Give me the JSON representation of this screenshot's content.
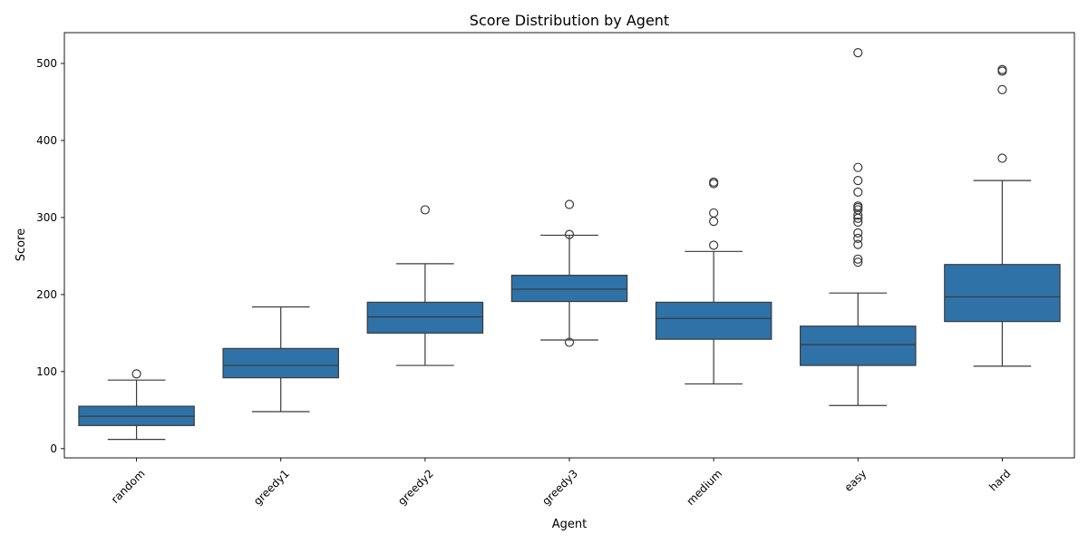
{
  "chart_data": {
    "type": "boxplot",
    "title": "Score Distribution by Agent",
    "xlabel": "Agent",
    "ylabel": "Score",
    "ylim": [
      -12,
      540
    ],
    "yticks": [
      0,
      100,
      200,
      300,
      400,
      500
    ],
    "categories": [
      "random",
      "greedy1",
      "greedy2",
      "greedy3",
      "medium",
      "easy",
      "hard"
    ],
    "box_color": "#2e72a8",
    "grid": false,
    "boxes": [
      {
        "category": "random",
        "whisker_low": 12,
        "q1": 30,
        "median": 42,
        "q3": 55,
        "whisker_high": 89,
        "outliers": [
          97
        ]
      },
      {
        "category": "greedy1",
        "whisker_low": 48,
        "q1": 92,
        "median": 108,
        "q3": 130,
        "whisker_high": 184,
        "outliers": []
      },
      {
        "category": "greedy2",
        "whisker_low": 108,
        "q1": 150,
        "median": 171,
        "q3": 190,
        "whisker_high": 240,
        "outliers": [
          310
        ]
      },
      {
        "category": "greedy3",
        "whisker_low": 141,
        "q1": 191,
        "median": 207,
        "q3": 225,
        "whisker_high": 277,
        "outliers": [
          138,
          278,
          317
        ]
      },
      {
        "category": "medium",
        "whisker_low": 84,
        "q1": 142,
        "median": 169,
        "q3": 190,
        "whisker_high": 256,
        "outliers": [
          264,
          295,
          306,
          344,
          346
        ]
      },
      {
        "category": "easy",
        "whisker_low": 56,
        "q1": 108,
        "median": 135,
        "q3": 159,
        "whisker_high": 202,
        "outliers": [
          242,
          246,
          265,
          273,
          280,
          294,
          299,
          303,
          310,
          313,
          315,
          333,
          348,
          365,
          514
        ]
      },
      {
        "category": "hard",
        "whisker_low": 107,
        "q1": 165,
        "median": 197,
        "q3": 239,
        "whisker_high": 348,
        "outliers": [
          377,
          466,
          490,
          492
        ]
      }
    ]
  }
}
